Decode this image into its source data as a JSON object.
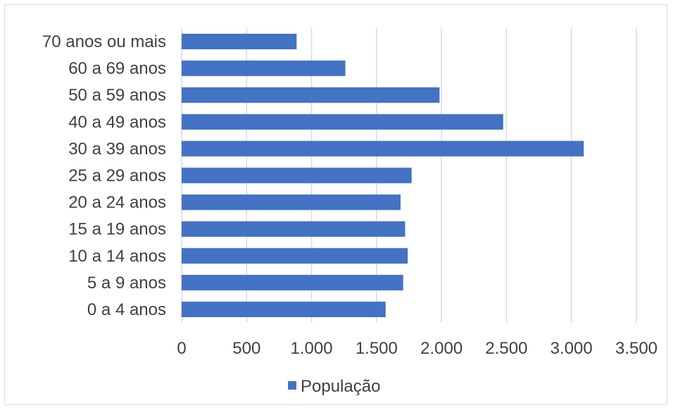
{
  "chart_data": {
    "type": "bar",
    "orientation": "horizontal",
    "categories": [
      "0 a 4 anos",
      "5 a 9 anos",
      "10 a 14 anos",
      "15 a 19 anos",
      "20 a 24 anos",
      "25 a 29 anos",
      "30 a 39 anos",
      "40 a 49 anos",
      "50 a 59 anos",
      "60 a 69 anos",
      "70 anos ou mais"
    ],
    "series": [
      {
        "name": "População",
        "color": "#4472c4",
        "values": [
          1570,
          1705,
          1740,
          1720,
          1685,
          1770,
          3095,
          2475,
          1985,
          1260,
          885
        ]
      }
    ],
    "xlim": [
      0,
      3500
    ],
    "xticks": [
      0,
      500,
      1000,
      1500,
      2000,
      2500,
      3000,
      3500
    ],
    "xtick_labels": [
      "0",
      "500",
      "1.000",
      "1.500",
      "2.000",
      "2.500",
      "3.000",
      "3.500"
    ],
    "grid": true,
    "grid_color": "#d9d9d9",
    "legend_position": "bottom",
    "title": "",
    "xlabel": "",
    "ylabel": ""
  }
}
